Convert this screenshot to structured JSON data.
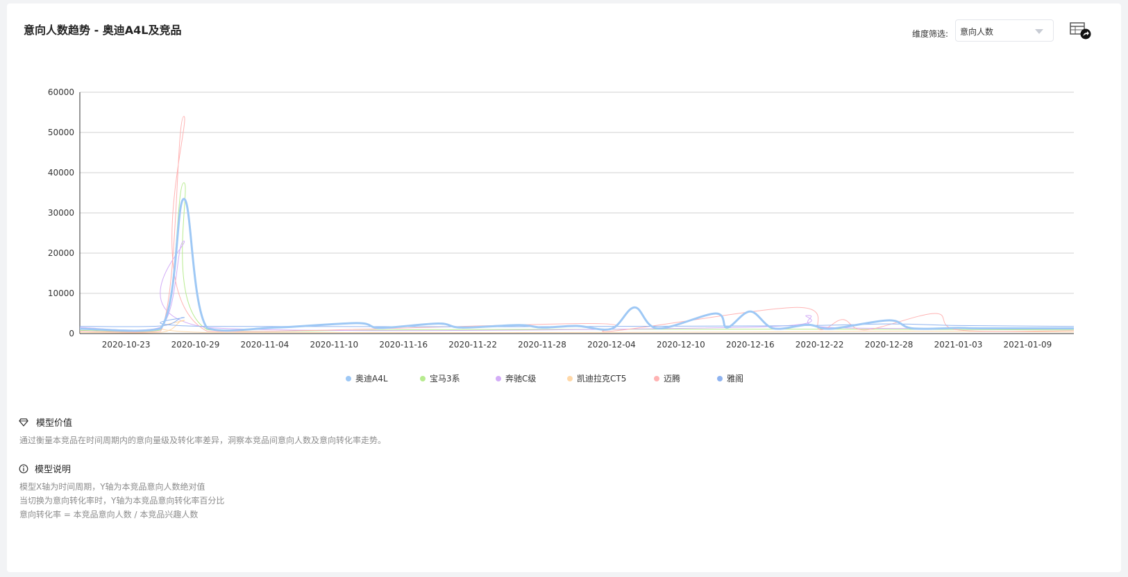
{
  "title": "意向人数趋势 - 奥迪A4L及竞品",
  "filter": {
    "label": "维度筛选:",
    "value": "意向人数"
  },
  "icons": {
    "table": "table-export-icon",
    "value": "diamond-icon",
    "info": "info-icon"
  },
  "model_value": {
    "title": "模型价值",
    "text": "通过衡量本竞品在时间周期内的意向量级及转化率差异，洞察本竞品间意向人数及意向转化率走势。"
  },
  "model_desc": {
    "title": "模型说明",
    "lines": [
      "模型X轴为时间周期，Y轴为本竞品意向人数绝对值",
      "当切换为意向转化率时，Y轴为本竞品意向转化率百分比",
      "意向转化率 = 本竞品意向人数 / 本竞品兴趣人数"
    ]
  },
  "chart_data": {
    "type": "line",
    "x_start": "2020-10-19",
    "x_end": "2021-01-13",
    "x_ticks": [
      "2020-10-23",
      "2020-10-29",
      "2020-11-04",
      "2020-11-10",
      "2020-11-16",
      "2020-11-22",
      "2020-11-28",
      "2020-12-04",
      "2020-12-10",
      "2020-12-16",
      "2020-12-22",
      "2020-12-28",
      "2021-01-03",
      "2021-01-09"
    ],
    "y_ticks": [
      "0",
      "10000",
      "20000",
      "30000",
      "40000",
      "50000",
      "60000"
    ],
    "ylim": [
      0,
      60000
    ],
    "grid": true,
    "legend_position": "bottom",
    "series": [
      {
        "name": "奥迪A4L",
        "color": "#9ec8f5",
        "width": 3,
        "points": [
          [
            "2020-10-19",
            1200
          ],
          [
            "2020-10-26",
            1300
          ],
          [
            "2020-10-28",
            33500
          ],
          [
            "2020-10-30",
            1400
          ],
          [
            "2020-11-05",
            1500
          ],
          [
            "2020-11-12",
            2600
          ],
          [
            "2020-11-14",
            1400
          ],
          [
            "2020-11-19",
            2500
          ],
          [
            "2020-11-21",
            1500
          ],
          [
            "2020-11-26",
            2100
          ],
          [
            "2020-11-28",
            1500
          ],
          [
            "2020-12-01",
            1900
          ],
          [
            "2020-12-04",
            1200
          ],
          [
            "2020-12-06",
            6500
          ],
          [
            "2020-12-08",
            1300
          ],
          [
            "2020-12-13",
            5000
          ],
          [
            "2020-12-14",
            1500
          ],
          [
            "2020-12-16",
            5500
          ],
          [
            "2020-12-18",
            1300
          ],
          [
            "2020-12-21",
            2200
          ],
          [
            "2020-12-23",
            1200
          ],
          [
            "2020-12-28",
            3300
          ],
          [
            "2020-12-30",
            1300
          ],
          [
            "2021-01-03",
            1400
          ],
          [
            "2021-01-05",
            1300
          ],
          [
            "2021-01-13",
            1300
          ]
        ]
      },
      {
        "name": "宝马3系",
        "color": "#b7eb8f",
        "width": 1,
        "points": [
          [
            "2020-10-19",
            800
          ],
          [
            "2020-10-26",
            900
          ],
          [
            "2020-10-28",
            37500
          ],
          [
            "2020-10-30",
            1000
          ],
          [
            "2020-11-19",
            1000
          ],
          [
            "2020-12-20",
            1100
          ],
          [
            "2021-01-13",
            900
          ]
        ]
      },
      {
        "name": "奔驰C级",
        "color": "#d3adf7",
        "width": 1,
        "points": [
          [
            "2020-10-19",
            1500
          ],
          [
            "2020-10-26",
            1600
          ],
          [
            "2020-10-28",
            23000
          ],
          [
            "2020-10-30",
            1500
          ],
          [
            "2020-12-16",
            1600
          ],
          [
            "2020-12-21",
            4500
          ],
          [
            "2020-12-23",
            1500
          ],
          [
            "2021-01-13",
            1400
          ]
        ]
      },
      {
        "name": "凯迪拉克CT5",
        "color": "#ffd8a8",
        "width": 1,
        "points": [
          [
            "2020-10-19",
            300
          ],
          [
            "2020-10-26",
            300
          ],
          [
            "2020-10-28",
            3300
          ],
          [
            "2020-10-30",
            300
          ],
          [
            "2020-12-16",
            400
          ],
          [
            "2020-12-29",
            600
          ],
          [
            "2021-01-13",
            400
          ]
        ]
      },
      {
        "name": "迈腾",
        "color": "#ffb3b3",
        "width": 1,
        "points": [
          [
            "2020-10-19",
            600
          ],
          [
            "2020-10-26",
            600
          ],
          [
            "2020-10-28",
            54000
          ],
          [
            "2020-10-30",
            600
          ],
          [
            "2020-12-02",
            2500
          ],
          [
            "2020-12-04",
            600
          ],
          [
            "2020-12-20",
            6500
          ],
          [
            "2020-12-22",
            1000
          ],
          [
            "2020-12-24",
            3500
          ],
          [
            "2020-12-26",
            900
          ],
          [
            "2021-01-01",
            5000
          ],
          [
            "2021-01-03",
            900
          ],
          [
            "2021-01-13",
            700
          ]
        ]
      },
      {
        "name": "雅阁",
        "color": "#8eb3f0",
        "width": 1,
        "points": [
          [
            "2020-10-19",
            1800
          ],
          [
            "2020-10-26",
            1900
          ],
          [
            "2020-10-28",
            4000
          ],
          [
            "2020-10-30",
            1800
          ],
          [
            "2020-12-16",
            1900
          ],
          [
            "2020-12-28",
            2400
          ],
          [
            "2021-01-03",
            2000
          ],
          [
            "2021-01-13",
            1800
          ]
        ]
      }
    ]
  }
}
